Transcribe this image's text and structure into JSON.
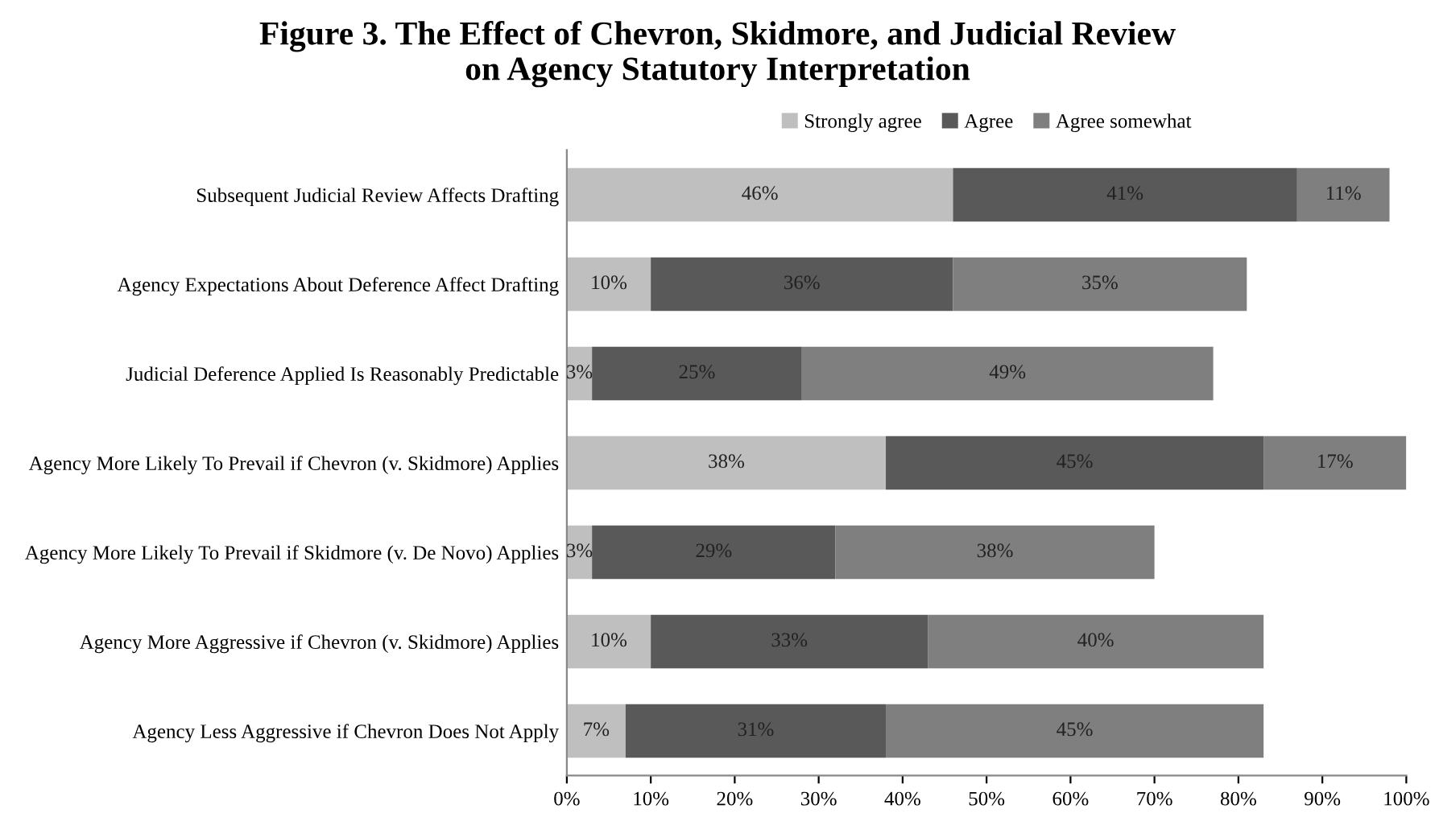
{
  "chart_data": {
    "type": "bar",
    "orientation": "horizontal",
    "stacked": true,
    "title": "Figure 3. The Effect of Chevron, Skidmore, and Judicial Review\non Agency Statutory Interpretation",
    "categories": [
      "Subsequent Judicial Review Affects Drafting",
      "Agency Expectations About Deference Affect Drafting",
      "Judicial Deference Applied Is Reasonably Predictable",
      "Agency More Likely To Prevail if Chevron (v. Skidmore) Applies",
      "Agency More Likely To Prevail if Skidmore (v. De Novo) Applies",
      "Agency More Aggressive if Chevron (v. Skidmore) Applies",
      "Agency Less Aggressive if Chevron Does Not Apply"
    ],
    "series": [
      {
        "name": "Strongly agree",
        "color": "#bfbfbf",
        "values": [
          46,
          10,
          3,
          38,
          3,
          10,
          7
        ],
        "value_labels": [
          "46%",
          "10%",
          "3%",
          "38%",
          "3%",
          "10%",
          "7%"
        ]
      },
      {
        "name": "Agree",
        "color": "#595959",
        "values": [
          41,
          36,
          25,
          45,
          29,
          33,
          31
        ],
        "value_labels": [
          "41%",
          "36%",
          "25%",
          "45%",
          "29%",
          "33%",
          "31%"
        ]
      },
      {
        "name": "Agree somewhat",
        "color": "#7f7f7f",
        "values": [
          11,
          35,
          49,
          17,
          38,
          40,
          45
        ],
        "value_labels": [
          "11%",
          "35%",
          "49%",
          "17%",
          "38%",
          "40%",
          "45%"
        ]
      }
    ],
    "xlim": [
      0,
      100
    ],
    "xticks": [
      {
        "value": 0,
        "label": "0%"
      },
      {
        "value": 10,
        "label": "10%"
      },
      {
        "value": 20,
        "label": "20%"
      },
      {
        "value": 30,
        "label": "30%"
      },
      {
        "value": 40,
        "label": "40%"
      },
      {
        "value": 50,
        "label": "50%"
      },
      {
        "value": 60,
        "label": "60%"
      },
      {
        "value": 70,
        "label": "70%"
      },
      {
        "value": 80,
        "label": "80%"
      },
      {
        "value": 90,
        "label": "90%"
      },
      {
        "value": 100,
        "label": "100%"
      }
    ],
    "legend": "top",
    "grid": false
  }
}
